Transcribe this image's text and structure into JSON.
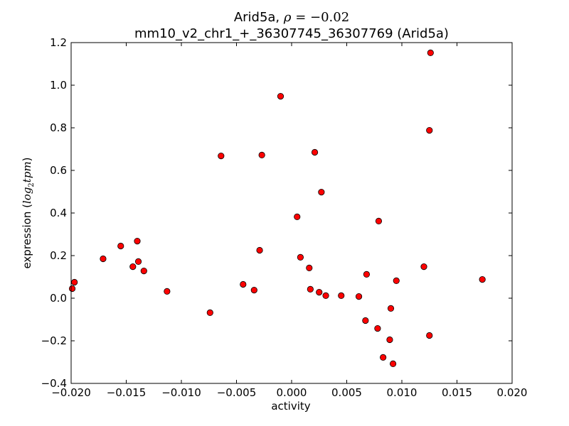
{
  "chart_data": {
    "type": "scatter",
    "title_gene": "Arid5a, ",
    "title_rho_symbol": "ρ",
    "title_rho_value": " = −0.02",
    "subtitle": "mm10_v2_chr1_+_36307745_36307769 (Arid5a)",
    "xlabel": "activity",
    "ylabel_text": "expression (",
    "ylabel_math_base": "log",
    "ylabel_math_sub": "2",
    "ylabel_math_var": "tpm",
    "ylabel_close": ")",
    "xlim": [
      -0.02,
      0.02
    ],
    "ylim": [
      -0.4,
      1.2
    ],
    "x_ticks": [
      -0.02,
      -0.015,
      -0.01,
      -0.005,
      0.0,
      0.005,
      0.01,
      0.015,
      0.02
    ],
    "x_tick_labels": [
      "−0.020",
      "−0.015",
      "−0.010",
      "−0.005",
      "0.000",
      "0.005",
      "0.010",
      "0.015",
      "0.020"
    ],
    "y_ticks": [
      -0.4,
      -0.2,
      0.0,
      0.2,
      0.4,
      0.6,
      0.8,
      1.0,
      1.2
    ],
    "y_tick_labels": [
      "−0.4",
      "−0.2",
      "0.0",
      "0.2",
      "0.4",
      "0.6",
      "0.8",
      "1.0",
      "1.2"
    ],
    "marker_color": "#ff0000",
    "marker_edge_color": "#000000",
    "grid": false,
    "points": [
      {
        "x": -0.0199,
        "y": 0.045
      },
      {
        "x": -0.0197,
        "y": 0.075
      },
      {
        "x": -0.0171,
        "y": 0.185
      },
      {
        "x": -0.0155,
        "y": 0.245
      },
      {
        "x": -0.0144,
        "y": 0.148
      },
      {
        "x": -0.014,
        "y": 0.268
      },
      {
        "x": -0.0139,
        "y": 0.172
      },
      {
        "x": -0.0134,
        "y": 0.128
      },
      {
        "x": -0.0113,
        "y": 0.032
      },
      {
        "x": -0.0074,
        "y": -0.068
      },
      {
        "x": -0.0064,
        "y": 0.668
      },
      {
        "x": -0.0044,
        "y": 0.065
      },
      {
        "x": -0.0034,
        "y": 0.038
      },
      {
        "x": -0.0029,
        "y": 0.225
      },
      {
        "x": -0.0027,
        "y": 0.672
      },
      {
        "x": -0.001,
        "y": 0.948
      },
      {
        "x": 0.0005,
        "y": 0.382
      },
      {
        "x": 0.0008,
        "y": 0.192
      },
      {
        "x": 0.0016,
        "y": 0.142
      },
      {
        "x": 0.0017,
        "y": 0.042
      },
      {
        "x": 0.0021,
        "y": 0.685
      },
      {
        "x": 0.0025,
        "y": 0.028
      },
      {
        "x": 0.0027,
        "y": 0.498
      },
      {
        "x": 0.0031,
        "y": 0.012
      },
      {
        "x": 0.0045,
        "y": 0.012
      },
      {
        "x": 0.0061,
        "y": 0.008
      },
      {
        "x": 0.0067,
        "y": -0.105
      },
      {
        "x": 0.0068,
        "y": 0.112
      },
      {
        "x": 0.0078,
        "y": -0.142
      },
      {
        "x": 0.0079,
        "y": 0.362
      },
      {
        "x": 0.0083,
        "y": -0.278
      },
      {
        "x": 0.0089,
        "y": -0.195
      },
      {
        "x": 0.009,
        "y": -0.048
      },
      {
        "x": 0.0092,
        "y": -0.308
      },
      {
        "x": 0.0095,
        "y": 0.082
      },
      {
        "x": 0.012,
        "y": 0.148
      },
      {
        "x": 0.0125,
        "y": -0.175
      },
      {
        "x": 0.0125,
        "y": 0.788
      },
      {
        "x": 0.0126,
        "y": 1.152
      },
      {
        "x": 0.0173,
        "y": 0.088
      }
    ]
  }
}
